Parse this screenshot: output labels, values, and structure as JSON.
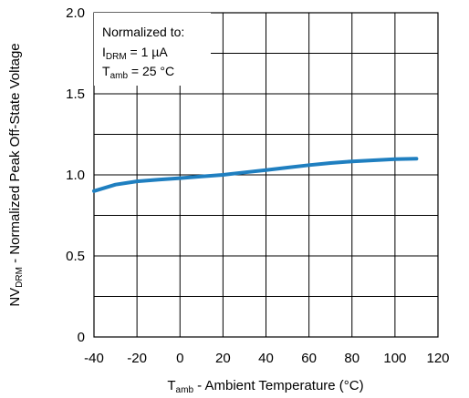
{
  "chart_data": {
    "type": "line",
    "title": "",
    "xlabel": {
      "main": "T",
      "sub": "amb",
      "rest": " - Ambient Temperature (°C)"
    },
    "ylabel": {
      "main": "NV",
      "sub": "DRM",
      "rest": " - Normalized Peak Off-State Voltage"
    },
    "xlim": [
      -40,
      120
    ],
    "ylim": [
      0,
      2.0
    ],
    "xticks": [
      -40,
      -20,
      0,
      20,
      40,
      60,
      80,
      100,
      120
    ],
    "xtick_labels": [
      "-40",
      "-20",
      "0",
      "20",
      "40",
      "60",
      "80",
      "100",
      "120"
    ],
    "yticks": [
      0,
      0.5,
      1.0,
      1.5,
      2.0
    ],
    "ytick_labels": [
      "0",
      "0.5",
      "1.0",
      "1.5",
      "2.0"
    ],
    "grid": true,
    "annotation": {
      "line1": "Normalized to:",
      "line2": {
        "main": "I",
        "sub": "DRM",
        "rest": " = 1 µA"
      },
      "line3": {
        "main": "T",
        "sub": "amb",
        "rest": " = 25 °C"
      }
    },
    "series": [
      {
        "color": "#1f7fc0",
        "x": [
          -40,
          -30,
          -20,
          -10,
          0,
          10,
          20,
          30,
          40,
          50,
          60,
          70,
          80,
          90,
          100,
          110
        ],
        "y": [
          0.9,
          0.94,
          0.96,
          0.97,
          0.98,
          0.99,
          1.0,
          1.015,
          1.03,
          1.045,
          1.06,
          1.073,
          1.083,
          1.09,
          1.097,
          1.1
        ]
      }
    ]
  }
}
